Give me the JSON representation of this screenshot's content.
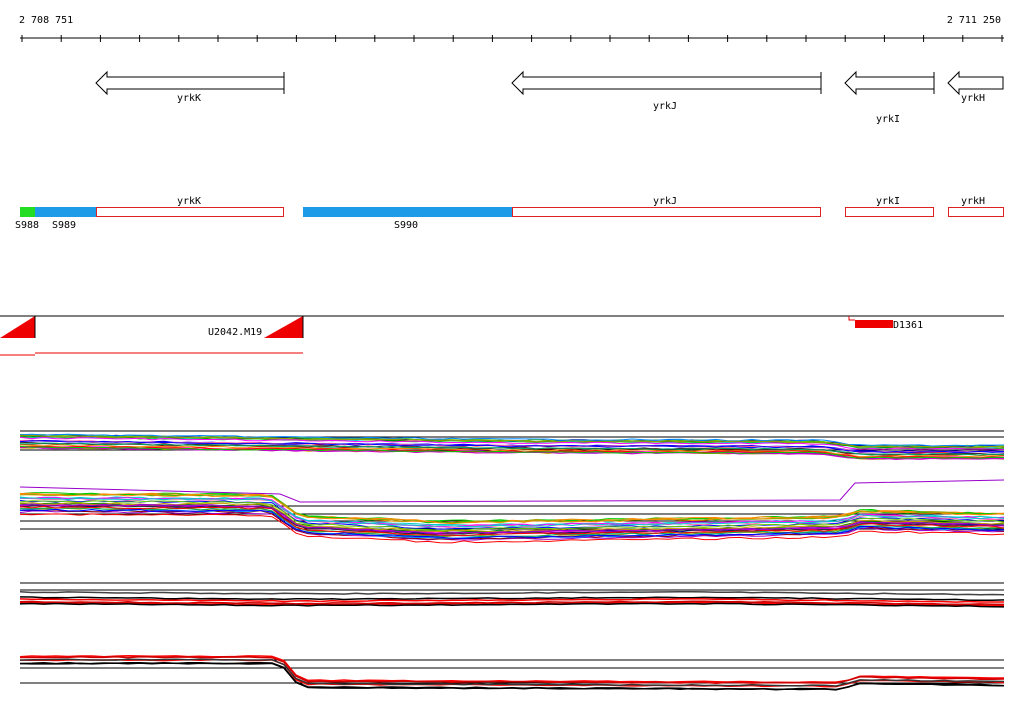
{
  "coordinates": {
    "start": "2 708 751",
    "end": "2 711 250"
  },
  "genes": [
    {
      "name": "yrkK"
    },
    {
      "name": "yrkJ"
    },
    {
      "name": "yrkI"
    },
    {
      "name": "yrkH"
    }
  ],
  "segments": [
    {
      "name": "S988",
      "color": "#22dd22"
    },
    {
      "name": "S989",
      "color": "#1e9be8"
    },
    {
      "name": "S990",
      "color": "#1e9be8"
    }
  ],
  "gene_box_color": "#dd2222",
  "probes": [
    {
      "name": "U2042.M19"
    },
    {
      "name": "D1361"
    }
  ],
  "probe_color": "#ee0000",
  "expression_panels": 4
}
